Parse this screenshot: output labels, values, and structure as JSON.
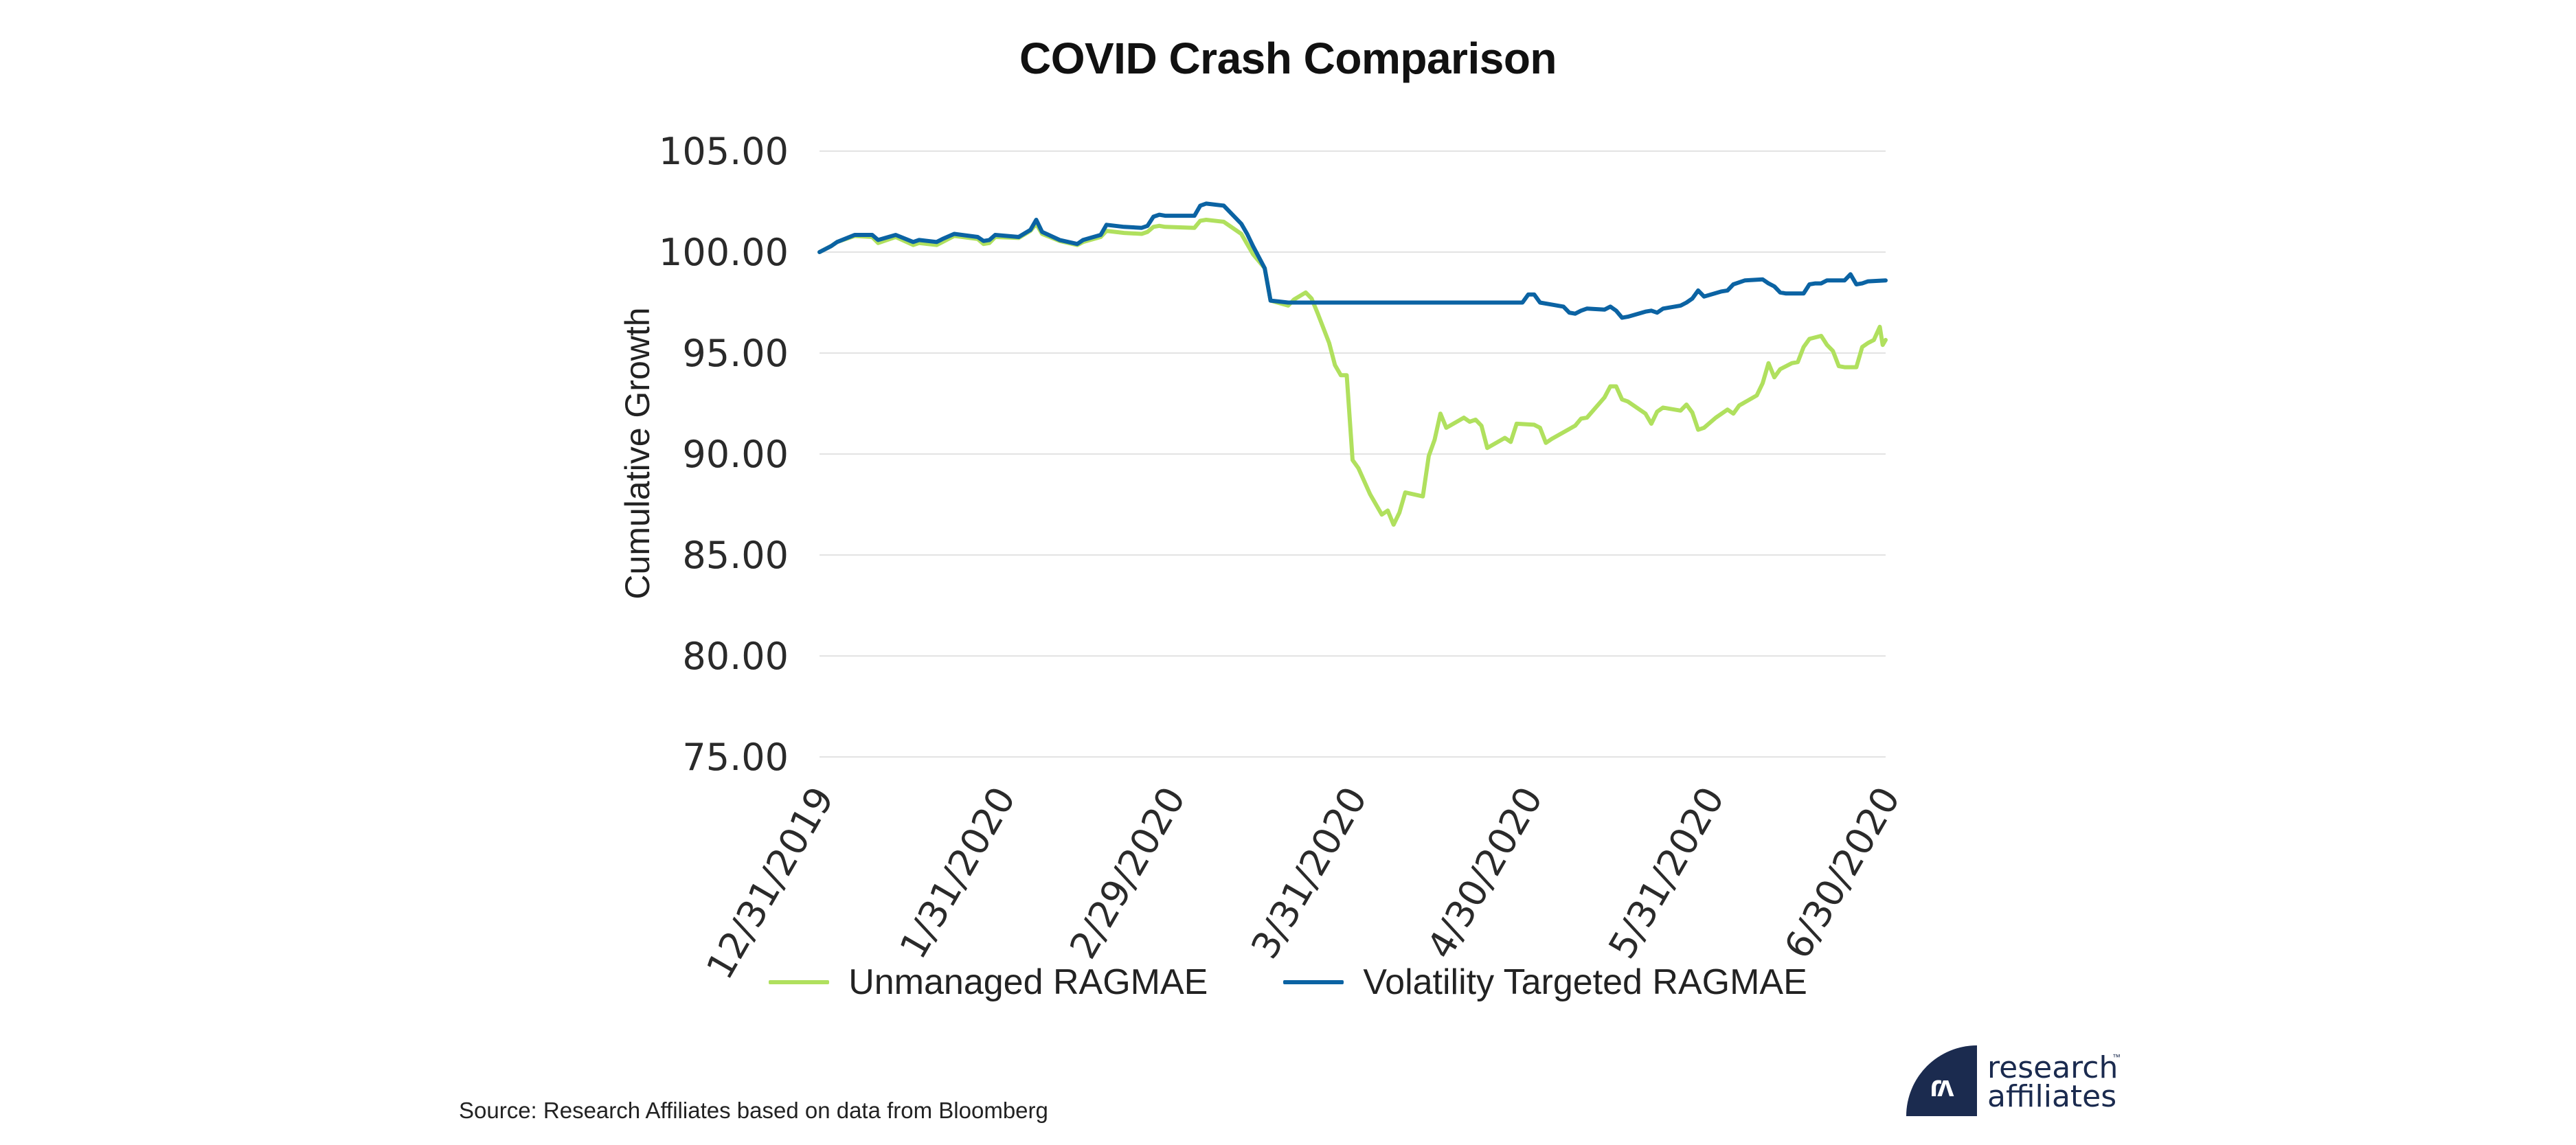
{
  "chart_data": {
    "type": "line",
    "title": "COVID Crash Comparison",
    "xlabel": "",
    "ylabel": "Cumulative Growth",
    "ylim": [
      75,
      105
    ],
    "yticks": [
      75,
      80,
      85,
      90,
      95,
      100,
      105
    ],
    "ytick_labels": [
      "75.00",
      "80.00",
      "85.00",
      "90.00",
      "95.00",
      "100.00",
      "105.00"
    ],
    "xlim": [
      "2019-12-31",
      "2020-06-30"
    ],
    "xtick_labels": [
      "12/31/2019",
      "1/31/2020",
      "2/29/2020",
      "3/31/2020",
      "4/30/2020",
      "5/31/2020",
      "6/30/2020"
    ],
    "xtick_dates": [
      "2019-12-31",
      "2020-01-31",
      "2020-02-29",
      "2020-03-31",
      "2020-04-30",
      "2020-05-31",
      "2020-06-30"
    ],
    "grid": "horizontal",
    "legend_position": "bottom",
    "series": [
      {
        "name": "Unmanaged RAGMAE",
        "color": "#b0e05e",
        "points": [
          [
            "2019-12-31",
            100.0
          ],
          [
            "2020-01-02",
            100.3
          ],
          [
            "2020-01-03",
            100.5
          ],
          [
            "2020-01-06",
            100.8
          ],
          [
            "2020-01-09",
            100.75
          ],
          [
            "2020-01-10",
            100.45
          ],
          [
            "2020-01-13",
            100.75
          ],
          [
            "2020-01-16",
            100.35
          ],
          [
            "2020-01-17",
            100.45
          ],
          [
            "2020-01-20",
            100.35
          ],
          [
            "2020-01-21",
            100.5
          ],
          [
            "2020-01-23",
            100.8
          ],
          [
            "2020-01-27",
            100.65
          ],
          [
            "2020-01-28",
            100.4
          ],
          [
            "2020-01-29",
            100.45
          ],
          [
            "2020-01-30",
            100.75
          ],
          [
            "2020-02-03",
            100.7
          ],
          [
            "2020-02-05",
            101.05
          ],
          [
            "2020-02-06",
            101.4
          ],
          [
            "2020-02-07",
            100.9
          ],
          [
            "2020-02-10",
            100.55
          ],
          [
            "2020-02-13",
            100.35
          ],
          [
            "2020-02-14",
            100.5
          ],
          [
            "2020-02-17",
            100.75
          ],
          [
            "2020-02-18",
            101.05
          ],
          [
            "2020-02-21",
            100.95
          ],
          [
            "2020-02-24",
            100.9
          ],
          [
            "2020-02-25",
            101.0
          ],
          [
            "2020-02-26",
            101.25
          ],
          [
            "2020-02-27",
            101.3
          ],
          [
            "2020-02-28",
            101.25
          ],
          [
            "2020-03-04",
            101.2
          ],
          [
            "2020-03-05",
            101.55
          ],
          [
            "2020-03-06",
            101.6
          ],
          [
            "2020-03-09",
            101.5
          ],
          [
            "2020-03-12",
            100.9
          ],
          [
            "2020-03-13",
            100.4
          ],
          [
            "2020-03-14",
            99.9
          ],
          [
            "2020-03-16",
            99.2
          ],
          [
            "2020-03-17",
            97.6
          ],
          [
            "2020-03-20",
            97.35
          ],
          [
            "2020-03-21",
            97.65
          ],
          [
            "2020-03-23",
            98.0
          ],
          [
            "2020-03-24",
            97.7
          ],
          [
            "2020-03-25",
            97.0
          ],
          [
            "2020-03-27",
            95.5
          ],
          [
            "2020-03-28",
            94.4
          ],
          [
            "2020-03-29",
            93.9
          ],
          [
            "2020-03-30",
            93.9
          ],
          [
            "2020-03-31",
            89.7
          ],
          [
            "2020-04-01",
            89.3
          ],
          [
            "2020-04-03",
            88.0
          ],
          [
            "2020-04-05",
            87.0
          ],
          [
            "2020-04-06",
            87.2
          ],
          [
            "2020-04-07",
            86.5
          ],
          [
            "2020-04-08",
            87.1
          ],
          [
            "2020-04-09",
            88.1
          ],
          [
            "2020-04-12",
            87.9
          ],
          [
            "2020-04-13",
            89.9
          ],
          [
            "2020-04-14",
            90.7
          ],
          [
            "2020-04-15",
            92.0
          ],
          [
            "2020-04-16",
            91.3
          ],
          [
            "2020-04-19",
            91.8
          ],
          [
            "2020-04-20",
            91.6
          ],
          [
            "2020-04-21",
            91.7
          ],
          [
            "2020-04-22",
            91.4
          ],
          [
            "2020-04-23",
            90.3
          ],
          [
            "2020-04-26",
            90.8
          ],
          [
            "2020-04-27",
            90.6
          ],
          [
            "2020-04-28",
            91.5
          ],
          [
            "2020-05-01",
            91.45
          ],
          [
            "2020-05-02",
            91.3
          ],
          [
            "2020-05-03",
            90.55
          ],
          [
            "2020-05-04",
            90.75
          ],
          [
            "2020-05-08",
            91.4
          ],
          [
            "2020-05-09",
            91.75
          ],
          [
            "2020-05-10",
            91.8
          ],
          [
            "2020-05-13",
            92.8
          ],
          [
            "2020-05-14",
            93.35
          ],
          [
            "2020-05-15",
            93.35
          ],
          [
            "2020-05-16",
            92.7
          ],
          [
            "2020-05-17",
            92.6
          ],
          [
            "2020-05-20",
            92.0
          ],
          [
            "2020-05-21",
            91.5
          ],
          [
            "2020-05-22",
            92.1
          ],
          [
            "2020-05-23",
            92.3
          ],
          [
            "2020-05-26",
            92.15
          ],
          [
            "2020-05-27",
            92.45
          ],
          [
            "2020-05-28",
            92.05
          ],
          [
            "2020-05-29",
            91.2
          ],
          [
            "2020-05-30",
            91.3
          ],
          [
            "2020-06-01",
            91.8
          ],
          [
            "2020-06-03",
            92.2
          ],
          [
            "2020-06-04",
            92.0
          ],
          [
            "2020-06-05",
            92.4
          ],
          [
            "2020-06-08",
            92.9
          ],
          [
            "2020-06-09",
            93.5
          ],
          [
            "2020-06-10",
            94.5
          ],
          [
            "2020-06-11",
            93.8
          ],
          [
            "2020-06-12",
            94.2
          ],
          [
            "2020-06-14",
            94.5
          ],
          [
            "2020-06-15",
            94.55
          ],
          [
            "2020-06-16",
            95.3
          ],
          [
            "2020-06-17",
            95.7
          ],
          [
            "2020-06-19",
            95.85
          ],
          [
            "2020-06-20",
            95.4
          ],
          [
            "2020-06-21",
            95.1
          ],
          [
            "2020-06-22",
            94.35
          ],
          [
            "2020-06-23",
            94.3
          ],
          [
            "2020-06-25",
            94.3
          ],
          [
            "2020-06-26",
            95.3
          ],
          [
            "2020-06-27",
            95.5
          ],
          [
            "2020-06-28",
            95.65
          ],
          [
            "2020-06-29",
            96.3
          ],
          [
            "2020-06-29T12",
            95.4
          ],
          [
            "2020-06-30",
            95.65
          ]
        ]
      },
      {
        "name": "Volatility Targeted RAGMAE",
        "color": "#0b63a3",
        "points": [
          [
            "2019-12-31",
            100.0
          ],
          [
            "2020-01-02",
            100.3
          ],
          [
            "2020-01-03",
            100.5
          ],
          [
            "2020-01-06",
            100.85
          ],
          [
            "2020-01-09",
            100.85
          ],
          [
            "2020-01-10",
            100.6
          ],
          [
            "2020-01-13",
            100.85
          ],
          [
            "2020-01-16",
            100.5
          ],
          [
            "2020-01-17",
            100.6
          ],
          [
            "2020-01-20",
            100.5
          ],
          [
            "2020-01-21",
            100.65
          ],
          [
            "2020-01-23",
            100.9
          ],
          [
            "2020-01-27",
            100.75
          ],
          [
            "2020-01-28",
            100.55
          ],
          [
            "2020-01-29",
            100.6
          ],
          [
            "2020-01-30",
            100.85
          ],
          [
            "2020-02-03",
            100.75
          ],
          [
            "2020-02-05",
            101.1
          ],
          [
            "2020-02-06",
            101.6
          ],
          [
            "2020-02-07",
            101.0
          ],
          [
            "2020-02-10",
            100.6
          ],
          [
            "2020-02-13",
            100.4
          ],
          [
            "2020-02-14",
            100.6
          ],
          [
            "2020-02-17",
            100.85
          ],
          [
            "2020-02-18",
            101.35
          ],
          [
            "2020-02-21",
            101.25
          ],
          [
            "2020-02-24",
            101.2
          ],
          [
            "2020-02-25",
            101.3
          ],
          [
            "2020-02-26",
            101.75
          ],
          [
            "2020-02-27",
            101.85
          ],
          [
            "2020-02-28",
            101.8
          ],
          [
            "2020-03-04",
            101.8
          ],
          [
            "2020-03-05",
            102.3
          ],
          [
            "2020-03-06",
            102.4
          ],
          [
            "2020-03-09",
            102.3
          ],
          [
            "2020-03-12",
            101.4
          ],
          [
            "2020-03-13",
            100.9
          ],
          [
            "2020-03-14",
            100.3
          ],
          [
            "2020-03-16",
            99.2
          ],
          [
            "2020-03-17",
            97.6
          ],
          [
            "2020-03-20",
            97.5
          ],
          [
            "2020-03-21",
            97.5
          ],
          [
            "2020-04-29",
            97.5
          ],
          [
            "2020-04-30",
            97.9
          ],
          [
            "2020-05-01",
            97.9
          ],
          [
            "2020-05-02",
            97.5
          ],
          [
            "2020-05-04",
            97.4
          ],
          [
            "2020-05-06",
            97.3
          ],
          [
            "2020-05-07",
            97.0
          ],
          [
            "2020-05-08",
            96.95
          ],
          [
            "2020-05-09",
            97.1
          ],
          [
            "2020-05-10",
            97.2
          ],
          [
            "2020-05-13",
            97.15
          ],
          [
            "2020-05-14",
            97.3
          ],
          [
            "2020-05-15",
            97.1
          ],
          [
            "2020-05-16",
            96.75
          ],
          [
            "2020-05-17",
            96.8
          ],
          [
            "2020-05-20",
            97.05
          ],
          [
            "2020-05-21",
            97.1
          ],
          [
            "2020-05-22",
            97.0
          ],
          [
            "2020-05-23",
            97.2
          ],
          [
            "2020-05-26",
            97.35
          ],
          [
            "2020-05-27",
            97.5
          ],
          [
            "2020-05-28",
            97.7
          ],
          [
            "2020-05-29",
            98.1
          ],
          [
            "2020-05-30",
            97.8
          ],
          [
            "2020-06-02",
            98.05
          ],
          [
            "2020-06-03",
            98.1
          ],
          [
            "2020-06-04",
            98.4
          ],
          [
            "2020-06-06",
            98.6
          ],
          [
            "2020-06-09",
            98.65
          ],
          [
            "2020-06-10",
            98.45
          ],
          [
            "2020-06-11",
            98.3
          ],
          [
            "2020-06-12",
            98.0
          ],
          [
            "2020-06-13",
            97.95
          ],
          [
            "2020-06-16",
            97.95
          ],
          [
            "2020-06-17",
            98.4
          ],
          [
            "2020-06-18",
            98.45
          ],
          [
            "2020-06-19",
            98.45
          ],
          [
            "2020-06-20",
            98.6
          ],
          [
            "2020-06-23",
            98.6
          ],
          [
            "2020-06-24",
            98.9
          ],
          [
            "2020-06-25",
            98.4
          ],
          [
            "2020-06-26",
            98.45
          ],
          [
            "2020-06-27",
            98.55
          ],
          [
            "2020-06-30",
            98.6
          ]
        ]
      }
    ]
  },
  "footer": {
    "source": "Source: Research Affiliates based on data from Bloomberg"
  },
  "logo": {
    "line1": "research",
    "line2": "affiliates",
    "tm": "™",
    "glyph": "ɾʌ"
  }
}
